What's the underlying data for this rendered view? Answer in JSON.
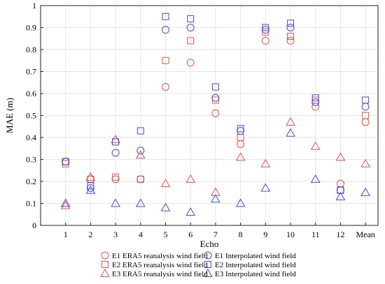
{
  "chart_data": {
    "type": "scatter",
    "xlabel": "Echo",
    "ylabel": "MAE (m)",
    "ylim": [
      0,
      1
    ],
    "yticks": [
      0,
      0.1,
      0.2,
      0.3,
      0.4,
      0.5,
      0.6,
      0.7,
      0.8,
      0.9,
      1
    ],
    "ytick_labels": [
      "0",
      "0.1",
      "0.2",
      "0.3",
      "0.4",
      "0.5",
      "0.6",
      "0.7",
      "0.8",
      "0.9",
      "1"
    ],
    "categories": [
      "1",
      "2",
      "3",
      "4",
      "5",
      "6",
      "7",
      "8",
      "9",
      "10",
      "11",
      "12",
      "Mean"
    ],
    "grid": true,
    "legend_position": "bottom",
    "series": [
      {
        "name": "E1 ERA5 reanalysis wind field",
        "marker": "circle",
        "color": "#d9534f",
        "values": [
          0.29,
          0.21,
          0.21,
          0.21,
          0.63,
          0.74,
          0.51,
          0.37,
          0.84,
          0.84,
          0.54,
          0.19,
          0.47
        ]
      },
      {
        "name": "E2 ERA5 reanalysis wind field",
        "marker": "square",
        "color": "#d9534f",
        "values": [
          0.28,
          0.21,
          0.22,
          0.21,
          0.75,
          0.84,
          0.57,
          0.4,
          0.88,
          0.86,
          0.57,
          0.16,
          0.5
        ]
      },
      {
        "name": "E3 ERA5 reanalysis wind field",
        "marker": "triangle",
        "color": "#d9534f",
        "values": [
          0.09,
          0.22,
          0.39,
          0.32,
          0.19,
          0.21,
          0.15,
          0.31,
          0.28,
          0.47,
          0.36,
          0.31,
          0.28
        ]
      },
      {
        "name": "E1 Interpolated wind field",
        "marker": "circle",
        "color": "#4a4ac8",
        "values": [
          0.29,
          0.17,
          0.33,
          0.34,
          0.89,
          0.9,
          0.58,
          0.43,
          0.89,
          0.9,
          0.56,
          0.16,
          0.54
        ]
      },
      {
        "name": "E2 Interpolated wind field",
        "marker": "square",
        "color": "#4a4ac8",
        "values": [
          0.29,
          0.18,
          0.38,
          0.43,
          0.95,
          0.94,
          0.63,
          0.44,
          0.9,
          0.92,
          0.58,
          0.16,
          0.57
        ]
      },
      {
        "name": "E3 Interpolated wind field",
        "marker": "triangle",
        "color": "#4a4ac8",
        "values": [
          0.1,
          0.16,
          0.1,
          0.1,
          0.08,
          0.06,
          0.12,
          0.1,
          0.17,
          0.42,
          0.21,
          0.13,
          0.15
        ]
      }
    ]
  }
}
